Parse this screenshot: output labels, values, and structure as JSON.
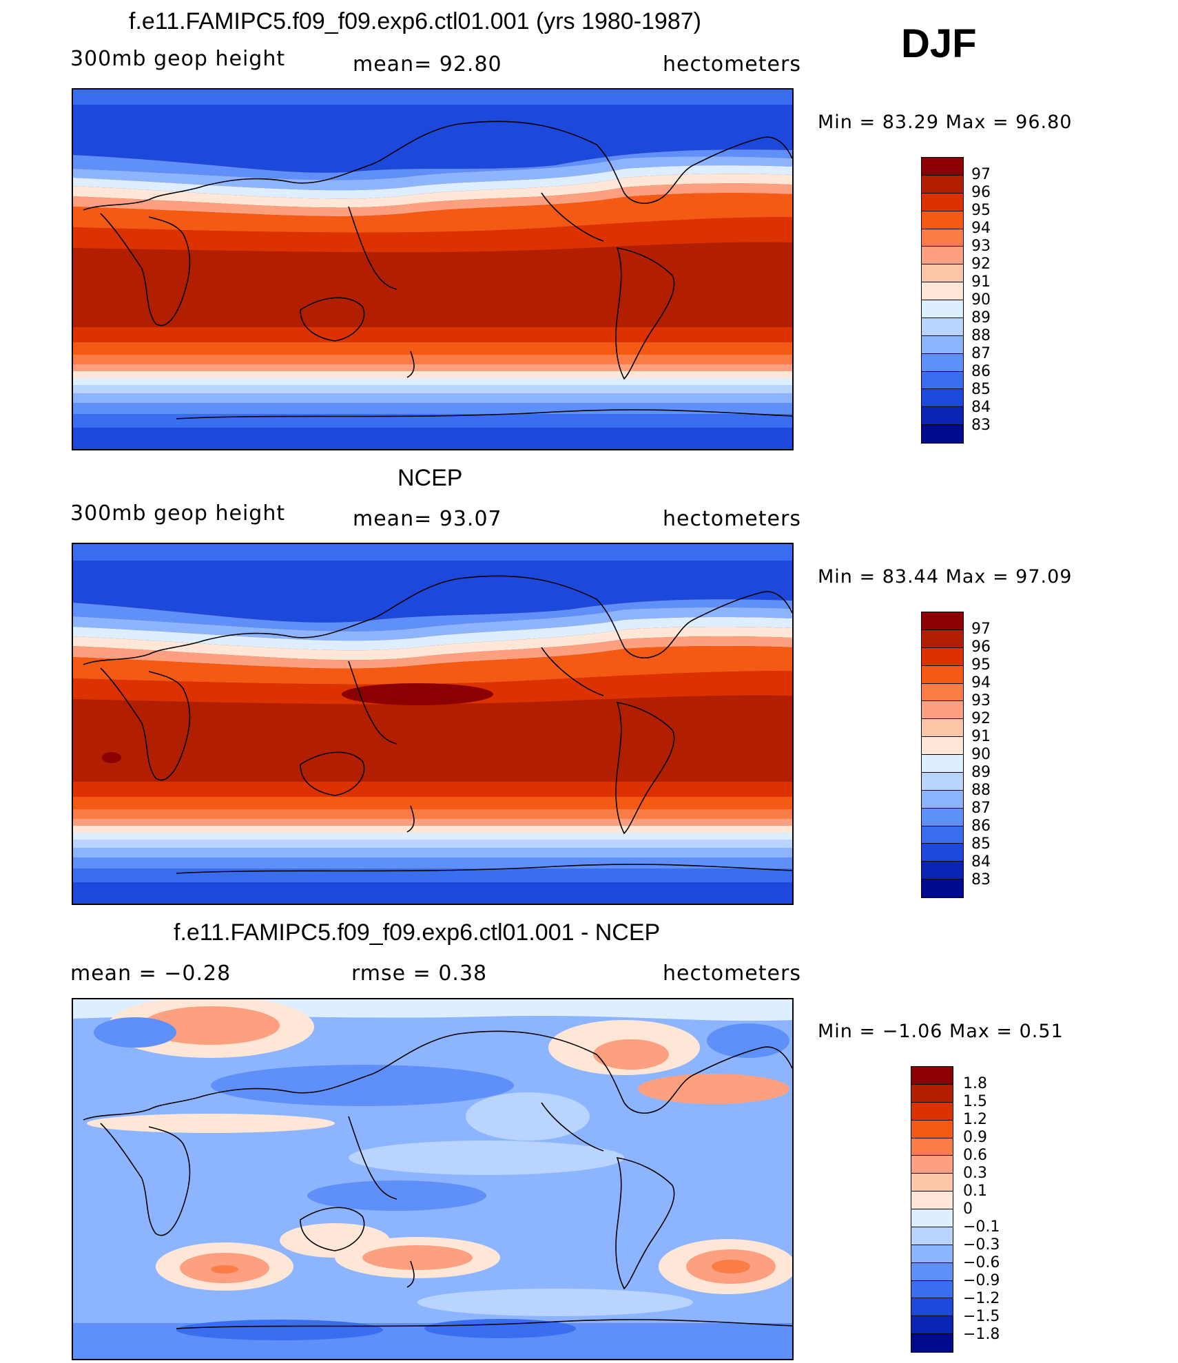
{
  "season": "DJF",
  "panels": [
    {
      "title": "f.e11.FAMIPC5.f09_f09.exp6.ctl01.001 (yrs 1980-1987)",
      "left": "300mb  geop  height",
      "center": "mean=   92.80",
      "right": "hectometers",
      "minmax": "Min  =    83.29  Max  =    96.80"
    },
    {
      "title": "NCEP",
      "left": "300mb  geop  height",
      "center": "mean=   93.07",
      "right": "hectometers",
      "minmax": "Min  =    83.44  Max  =    97.09"
    },
    {
      "title": "f.e11.FAMIPC5.f09_f09.exp6.ctl01.001 - NCEP",
      "left": "mean  =    −0.28",
      "center": "rmse  =     0.38",
      "right": "hectometers",
      "minmax": "Min  =   −1.06  Max  =     0.51"
    }
  ],
  "colorbars": {
    "abs": {
      "labels": [
        "97",
        "96",
        "95",
        "94",
        "93",
        "92",
        "91",
        "90",
        "89",
        "88",
        "87",
        "86",
        "85",
        "84",
        "83"
      ],
      "colors": [
        "#8b0000",
        "#b21f00",
        "#dc3200",
        "#f55a14",
        "#fb7d46",
        "#fca080",
        "#fdc6a8",
        "#fee7d6",
        "#dceeff",
        "#b8d4ff",
        "#8db5ff",
        "#5f8ff8",
        "#3a6ef0",
        "#1c48dc",
        "#0a24b4",
        "#000a8c"
      ]
    },
    "diff": {
      "labels": [
        "1.8",
        "1.5",
        "1.2",
        "0.9",
        "0.6",
        "0.3",
        "0.1",
        "0",
        "−0.1",
        "−0.3",
        "−0.6",
        "−0.9",
        "−1.2",
        "−1.5",
        "−1.8"
      ],
      "colors": [
        "#8b0000",
        "#b21f00",
        "#dc3200",
        "#f55a14",
        "#fb7d46",
        "#fca080",
        "#fdc6a8",
        "#fee7d6",
        "#dceeff",
        "#b8d4ff",
        "#8db5ff",
        "#5f8ff8",
        "#3a6ef0",
        "#1c48dc",
        "#0a24b4",
        "#000a8c"
      ]
    }
  }
}
